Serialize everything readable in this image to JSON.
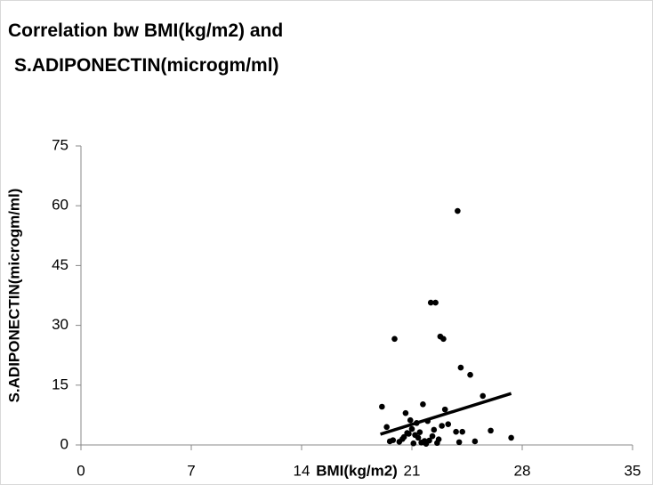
{
  "chart_data": {
    "type": "scatter",
    "title": [
      "Correlation bw BMI(kg/m2) and",
      "S.ADIPONECTIN(microgm/ml)"
    ],
    "x_label": "BMI(kg/m2)",
    "y_label": "S.ADIPONECTIN(microgm/ml)",
    "xlim": [
      0,
      35
    ],
    "ylim": [
      0,
      75
    ],
    "xticks": [
      0,
      7,
      14,
      21,
      28,
      35
    ],
    "yticks": [
      0,
      15,
      30,
      45,
      60,
      75
    ],
    "grid": false,
    "series": [
      {
        "color": "#000000",
        "x": [
          19.1,
          19.9,
          23.9,
          22.2,
          22.5,
          22.8,
          23.0,
          24.1,
          24.7,
          25.5,
          21.7,
          20.6,
          23.1,
          19.4,
          26.0,
          27.3,
          23.8,
          24.2,
          25.0,
          24.0,
          20.4,
          20.8,
          21.0,
          21.3,
          21.5,
          21.8,
          22.0,
          22.3,
          22.6,
          22.9,
          20.2,
          19.6,
          19.8,
          20.5,
          21.1,
          21.4,
          21.9,
          22.4,
          22.7,
          23.3,
          20.9,
          21.2,
          21.6,
          22.1,
          20.7
        ],
        "y": [
          9.6,
          26.6,
          58.7,
          35.7,
          35.7,
          27.2,
          26.6,
          19.4,
          17.6,
          12.3,
          10.2,
          8.0,
          8.9,
          4.5,
          3.6,
          1.8,
          3.3,
          3.3,
          0.9,
          0.7,
          1.5,
          2.8,
          4.0,
          5.5,
          3.2,
          1.0,
          6.0,
          2.2,
          0.5,
          4.8,
          0.8,
          0.9,
          1.2,
          2.0,
          0.4,
          1.8,
          0.3,
          3.8,
          1.4,
          5.2,
          6.2,
          2.5,
          0.6,
          1.1,
          3.0
        ]
      },
      {
        "type": "line",
        "color": "#000000",
        "x": [
          19.0,
          27.3
        ],
        "y": [
          2.7,
          12.9
        ]
      }
    ]
  }
}
